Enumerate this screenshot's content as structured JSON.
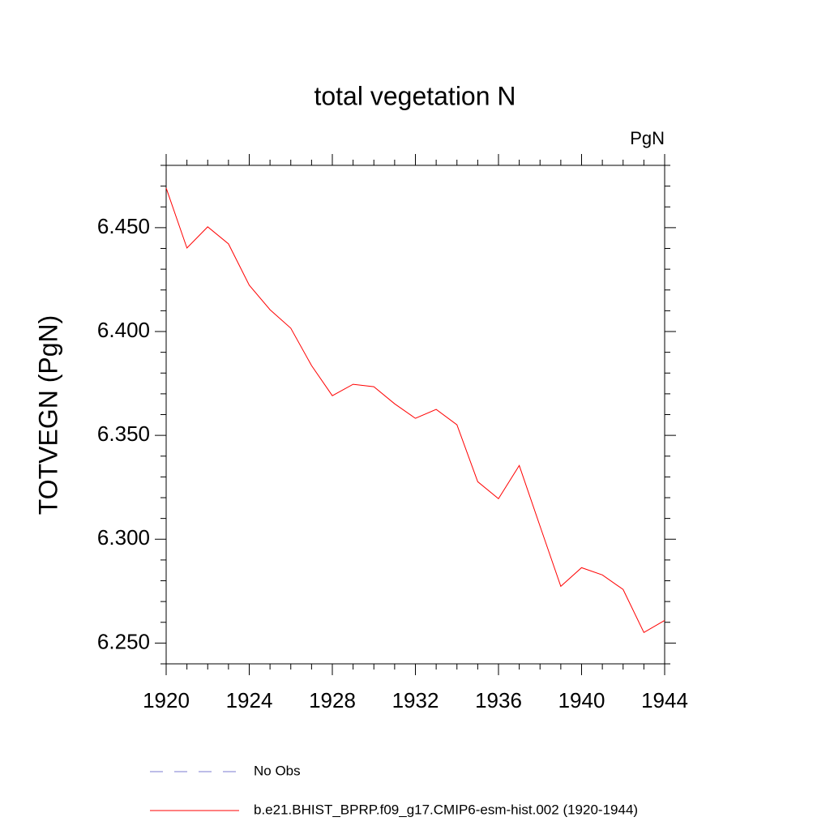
{
  "chart_data": {
    "type": "line",
    "title": "total vegetation N",
    "units_label": "PgN",
    "y_label": "TOTVEGN  (PgN)",
    "x": [
      1920,
      1921,
      1922,
      1923,
      1924,
      1925,
      1926,
      1927,
      1928,
      1929,
      1930,
      1931,
      1932,
      1933,
      1934,
      1935,
      1936,
      1937,
      1938,
      1939,
      1940,
      1941,
      1942,
      1943,
      1944
    ],
    "series": [
      {
        "name": "b.e21.BHIST_BPRP.f09_g17.CMIP6-esm-hist.002 (1920-1944)",
        "color": "#ff0000",
        "values": [
          6.4691,
          6.4402,
          6.4504,
          6.4422,
          6.4223,
          6.4105,
          6.4016,
          6.3836,
          6.3691,
          6.3746,
          6.3734,
          6.3652,
          6.3582,
          6.3625,
          6.3551,
          6.3277,
          6.3195,
          6.3355,
          6.3063,
          6.2773,
          6.2863,
          6.2828,
          6.2758,
          6.2551,
          6.2609
        ]
      }
    ],
    "legend_entries": [
      {
        "name": "No Obs",
        "color": "#7b7bd0",
        "dash": true
      }
    ],
    "xlim": [
      1920,
      1944
    ],
    "xticks": [
      1920,
      1924,
      1928,
      1932,
      1936,
      1940,
      1944
    ],
    "ylim": [
      6.24,
      6.48
    ],
    "yticks": [
      {
        "value": 6.25,
        "label": "6.250"
      },
      {
        "value": 6.3,
        "label": "6.300"
      },
      {
        "value": 6.35,
        "label": "6.350"
      },
      {
        "value": 6.4,
        "label": "6.400"
      },
      {
        "value": 6.45,
        "label": "6.450"
      }
    ],
    "grid": false
  }
}
